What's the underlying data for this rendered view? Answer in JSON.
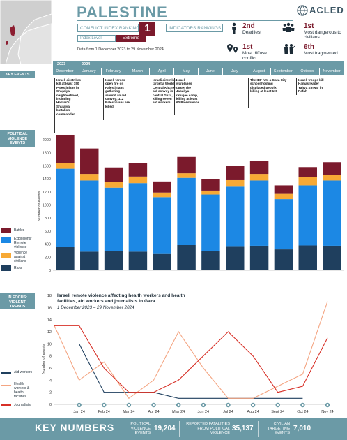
{
  "header": {
    "title": "PALESTINE",
    "logo_text": "ACLED",
    "conflict_index_label": "CONFLICT INDEX RANKING",
    "conflict_index_rank": "1",
    "indicators_label": "INDICATORS RANKINGS",
    "index_level_label": "Index Level",
    "index_level_value": "Extreme",
    "date_range": "Data from 1 December 2023 to 29 November 2024"
  },
  "indicators": [
    {
      "rank": "2nd",
      "text": "Deadliest",
      "icon": "person-icon"
    },
    {
      "rank": "1st",
      "text": "Most dangerous to civilians",
      "icon": "people-group-icon"
    },
    {
      "rank": "1st",
      "text": "Most diffuse conflict",
      "icon": "map-pins-icon"
    },
    {
      "rank": "6th",
      "text": "Most fragmented",
      "icon": "armed-groups-icon"
    }
  ],
  "sidebar": {
    "key_events": "KEY EVENTS",
    "political_violence": "POLITICAL VIOLENCE EVENTS",
    "in_focus": "IN FOCUS: VIOLENT TRENDS"
  },
  "timeline": {
    "years": [
      "2023",
      "2024"
    ],
    "months": [
      "December",
      "January",
      "February",
      "March",
      "April",
      "May",
      "June",
      "July",
      "August",
      "September",
      "October",
      "November"
    ]
  },
  "key_events": [
    {
      "month": "December",
      "text": "Israeli airstrikes kill at least 150 Palestinians in Shujaiya neighborhood, including Hamas's Shujaiya battalion commander"
    },
    {
      "month": "February",
      "text": "Israeli forces open fire on Palestinians gathering around an aid convoy; 112 Palestinians are killed"
    },
    {
      "month": "April",
      "text": "Israeli airstrikes target a World Central Kitchen aid convoy in central Gaza, killing seven aid workers"
    },
    {
      "month": "May",
      "text": "Israeli warplanes target the Jabaliya refugee camp, killing at least 60 Palestinians"
    },
    {
      "month": "August",
      "text": "The IDF hits a Gaza City school hosting displaced people, killing at least 100"
    },
    {
      "month": "October",
      "text": "Israeli troops kill Hamas leader Yahya Sinwar in Rafah"
    }
  ],
  "chart_data": [
    {
      "type": "bar",
      "stacked": true,
      "categories": [
        "December",
        "January",
        "February",
        "March",
        "April",
        "May",
        "June",
        "July",
        "August",
        "September",
        "October",
        "November"
      ],
      "ylabel": "Number of events",
      "ylim": [
        0,
        2000
      ],
      "yticks": [
        0,
        200,
        400,
        600,
        800,
        1000,
        1200,
        1400,
        1600,
        1800,
        2000
      ],
      "legend_position": "left",
      "series": [
        {
          "name": "Riots",
          "color": "#1f3f5e",
          "values": [
            355,
            285,
            295,
            285,
            260,
            385,
            290,
            370,
            375,
            320,
            380,
            375
          ]
        },
        {
          "name": "Explosions/ Remote violence",
          "color": "#1c88e4",
          "values": [
            1200,
            1090,
            970,
            1050,
            860,
            1030,
            870,
            910,
            1000,
            770,
            920,
            1000
          ]
        },
        {
          "name": "Violence against civilians",
          "color": "#f7a935",
          "values": [
            90,
            100,
            90,
            100,
            70,
            70,
            60,
            100,
            100,
            80,
            130,
            80
          ]
        },
        {
          "name": "Battles",
          "color": "#7b1a2c",
          "values": [
            430,
            390,
            220,
            210,
            170,
            250,
            180,
            220,
            200,
            130,
            150,
            200
          ]
        }
      ]
    },
    {
      "type": "line",
      "title": "Israeli remote violence affecting health workers and health facilities, aid workers and journalists in Gaza",
      "subtitle": "1 December 2023 – 29 November 2024",
      "ylabel": "Number of events",
      "ylim": [
        0,
        18
      ],
      "yticks": [
        0,
        2,
        4,
        6,
        8,
        10,
        12,
        14,
        16,
        18
      ],
      "x": [
        "Dec 23",
        "Jan 24",
        "Feb 24",
        "Mar 24",
        "Apr 24",
        "May 24",
        "Jun 24",
        "Jul 24",
        "Aug 24",
        "Sep 24",
        "Oct 24",
        "Nov 24"
      ],
      "xticks": [
        "Jan 24",
        "Feb 24",
        "Mar 24",
        "Apr 24",
        "May 24",
        "Jun 24",
        "Jul 24",
        "Aug 24",
        "Sept 24",
        "Oct 24",
        "Nov 24"
      ],
      "legend_position": "left",
      "series": [
        {
          "name": "Aid workers",
          "color": "#1f3f5e",
          "values": [
            null,
            10,
            2,
            2,
            2,
            1,
            1,
            1,
            1,
            1,
            1,
            null
          ]
        },
        {
          "name": "Health workers & health facilities",
          "color": "#f4a582",
          "values": [
            13,
            4,
            7,
            1,
            4,
            12,
            6,
            1,
            1,
            3,
            5,
            17
          ]
        },
        {
          "name": "Journalists",
          "color": "#d73027",
          "values": [
            13,
            13,
            6,
            2,
            2,
            4,
            8,
            12,
            8,
            2,
            3,
            11
          ]
        }
      ]
    }
  ],
  "key_numbers": {
    "title": "KEY NUMBERS",
    "items": [
      {
        "label": "POLITICAL VIOLENCE EVENTS",
        "value": "19,204"
      },
      {
        "label": "REPORTED FATALITIES FROM POLITICAL VIOLENCE",
        "value": "35,137"
      },
      {
        "label": "CIVILIAN TARGETING EVENTS",
        "value": "7,010"
      }
    ]
  },
  "colors": {
    "accent": "#6b9aa6",
    "brand": "#7b1a2c"
  }
}
